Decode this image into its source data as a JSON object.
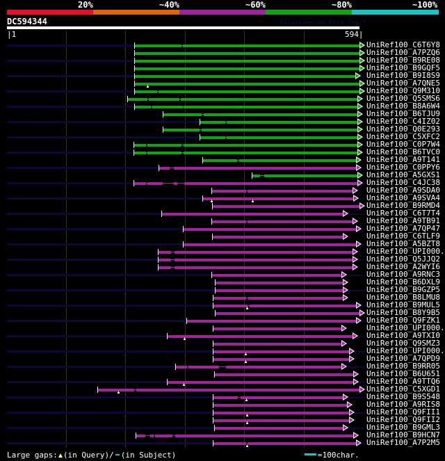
{
  "identity_scale": {
    "labels": [
      "20%",
      "~40%",
      "~60%",
      "~80%",
      "~100%"
    ],
    "colors": [
      "#e8102a",
      "#e0650a",
      "#a222a0",
      "#12a512",
      "#19c3c8"
    ]
  },
  "query": {
    "name": "DC594344",
    "length_start": "|1",
    "length_end": "594|",
    "length": 594
  },
  "version_text": "AlignView.pm Beta rel.7",
  "colors": {
    "green": "#12a512",
    "purple": "#a222a0",
    "subject_unaligned": "#0a0a3a",
    "query_gap_marker": "#ffff90",
    "scale_bar": "#19c3c8"
  },
  "hits": [
    {
      "id": "UniRef100_C6T6Y8",
      "color": "green",
      "start": 214,
      "end": 594,
      "ext": true,
      "gaps": [
        [
          294,
          296
        ]
      ],
      "qgaps": []
    },
    {
      "id": "UniRef100_A7PZQ6",
      "color": "green",
      "start": 214,
      "end": 594,
      "ext": false,
      "gaps": [],
      "qgaps": []
    },
    {
      "id": "UniRef100_B9RE08",
      "color": "green",
      "start": 214,
      "end": 594,
      "ext": true,
      "gaps": [],
      "qgaps": []
    },
    {
      "id": "UniRef100_B9GQF5",
      "color": "green",
      "start": 214,
      "end": 594,
      "ext": false,
      "gaps": [],
      "qgaps": []
    },
    {
      "id": "UniRef100_B9I8S9",
      "color": "green",
      "start": 214,
      "end": 587,
      "ext": true,
      "gaps": [],
      "qgaps": []
    },
    {
      "id": "UniRef100_A7QNE5",
      "color": "green",
      "start": 214,
      "end": 594,
      "ext": false,
      "gaps": [],
      "qgaps": [
        236
      ]
    },
    {
      "id": "UniRef100_Q9M310",
      "color": "green",
      "start": 214,
      "end": 594,
      "ext": true,
      "gaps": [
        [
          253,
          255
        ]
      ],
      "qgaps": []
    },
    {
      "id": "UniRef100_Q5SMS6",
      "color": "green",
      "start": 203,
      "end": 591,
      "ext": false,
      "gaps": [
        [
          237,
          239
        ],
        [
          291,
          293
        ]
      ],
      "qgaps": []
    },
    {
      "id": "UniRef100_B8A6W4",
      "color": "green",
      "start": 214,
      "end": 591,
      "ext": true,
      "gaps": [
        [
          243,
          245
        ],
        [
          296,
          298
        ]
      ],
      "qgaps": []
    },
    {
      "id": "UniRef100_B6TJU9",
      "color": "green",
      "start": 262,
      "end": 591,
      "ext": false,
      "gaps": [
        [
          328,
          331
        ]
      ],
      "qgaps": []
    },
    {
      "id": "UniRef100_C4IZ02",
      "color": "green",
      "start": 325,
      "end": 591,
      "ext": true,
      "gaps": [
        [
          368,
          370
        ]
      ],
      "qgaps": []
    },
    {
      "id": "UniRef100_Q0E293",
      "color": "green",
      "start": 262,
      "end": 591,
      "ext": false,
      "gaps": [
        [
          325,
          328
        ]
      ],
      "qgaps": []
    },
    {
      "id": "UniRef100_C5XFC2",
      "color": "green",
      "start": 325,
      "end": 591,
      "ext": true,
      "gaps": [
        [
          368,
          370
        ]
      ],
      "qgaps": []
    },
    {
      "id": "UniRef100_C0P7W4",
      "color": "green",
      "start": 213,
      "end": 591,
      "ext": false,
      "gaps": [
        [
          234,
          237
        ],
        [
          294,
          297
        ]
      ],
      "qgaps": []
    },
    {
      "id": "UniRef100_B6TVC0",
      "color": "green",
      "start": 213,
      "end": 591,
      "ext": true,
      "gaps": [
        [
          234,
          237
        ],
        [
          294,
          297
        ]
      ],
      "qgaps": []
    },
    {
      "id": "UniRef100_A9T141",
      "color": "green",
      "start": 329,
      "end": 588,
      "ext": false,
      "gaps": [
        [
          388,
          391
        ]
      ],
      "qgaps": []
    },
    {
      "id": "UniRef100_C0PPY6",
      "color": "purple",
      "start": 255,
      "end": 588,
      "ext": true,
      "gaps": [
        [
          274,
          281
        ]
      ],
      "qgaps": []
    },
    {
      "id": "UniRef100_A5GXS1",
      "color": "green",
      "start": 412,
      "end": 591,
      "ext": false,
      "gaps": [
        [
          427,
          433
        ]
      ],
      "qgaps": []
    },
    {
      "id": "UniRef100_C4JC38",
      "color": "purple",
      "start": 213,
      "end": 591,
      "ext": true,
      "gaps": [
        [
          234,
          237
        ],
        [
          262,
          281
        ],
        [
          287,
          299
        ]
      ],
      "qgaps": []
    },
    {
      "id": "UniRef100_A9SDA0",
      "color": "purple",
      "start": 344,
      "end": 582,
      "ext": false,
      "gaps": [
        [
          403,
          405
        ]
      ],
      "qgaps": []
    },
    {
      "id": "UniRef100_A9SVA4",
      "color": "purple",
      "start": 329,
      "end": 584,
      "ext": true,
      "gaps": [],
      "qgaps": [
        343,
        412
      ]
    },
    {
      "id": "UniRef100_B9RMD4",
      "color": "purple",
      "start": 346,
      "end": 594,
      "ext": false,
      "gaps": [],
      "qgaps": []
    },
    {
      "id": "UniRef100_C6T7T4",
      "color": "purple",
      "start": 260,
      "end": 566,
      "ext": true,
      "gaps": [],
      "qgaps": []
    },
    {
      "id": "UniRef100_A9TB91",
      "color": "purple",
      "start": 344,
      "end": 582,
      "ext": false,
      "gaps": [
        [
          403,
          405
        ]
      ],
      "qgaps": []
    },
    {
      "id": "UniRef100_A7QP47",
      "color": "purple",
      "start": 296,
      "end": 588,
      "ext": true,
      "gaps": [],
      "qgaps": []
    },
    {
      "id": "UniRef100_C6TLF9",
      "color": "purple",
      "start": 346,
      "end": 566,
      "ext": false,
      "gaps": [],
      "qgaps": []
    },
    {
      "id": "UniRef100_A5BZT8",
      "color": "purple",
      "start": 296,
      "end": 588,
      "ext": true,
      "gaps": [],
      "qgaps": []
    },
    {
      "id": "UniRef100_UPI000..",
      "color": "purple",
      "start": 254,
      "end": 582,
      "ext": false,
      "gaps": [
        [
          276,
          282
        ]
      ],
      "qgaps": []
    },
    {
      "id": "UniRef100_Q5JJQ2",
      "color": "purple",
      "start": 254,
      "end": 582,
      "ext": true,
      "gaps": [
        [
          276,
          282
        ]
      ],
      "qgaps": []
    },
    {
      "id": "UniRef100_A2WYI6",
      "color": "purple",
      "start": 254,
      "end": 582,
      "ext": false,
      "gaps": [
        [
          276,
          282
        ]
      ],
      "qgaps": []
    },
    {
      "id": "UniRef100_A9RNC3",
      "color": "purple",
      "start": 344,
      "end": 564,
      "ext": true,
      "gaps": [],
      "qgaps": []
    },
    {
      "id": "UniRef100_B6DXL9",
      "color": "purple",
      "start": 350,
      "end": 566,
      "ext": false,
      "gaps": [],
      "qgaps": []
    },
    {
      "id": "UniRef100_B9GZP5",
      "color": "purple",
      "start": 350,
      "end": 566,
      "ext": true,
      "gaps": [],
      "qgaps": []
    },
    {
      "id": "UniRef100_B8LMU8",
      "color": "purple",
      "start": 347,
      "end": 566,
      "ext": false,
      "gaps": [
        [
          403,
          407
        ]
      ],
      "qgaps": []
    },
    {
      "id": "UniRef100_B9MUL5",
      "color": "purple",
      "start": 347,
      "end": 588,
      "ext": true,
      "gaps": [
        [
          405,
          409
        ]
      ],
      "qgaps": [
        403
      ]
    },
    {
      "id": "UniRef100_B8Y9B5",
      "color": "purple",
      "start": 350,
      "end": 594,
      "ext": false,
      "gaps": [],
      "qgaps": []
    },
    {
      "id": "UniRef100_Q9FZK1",
      "color": "purple",
      "start": 302,
      "end": 588,
      "ext": true,
      "gaps": [],
      "qgaps": []
    },
    {
      "id": "UniRef100_UPI000..",
      "color": "purple",
      "start": 347,
      "end": 564,
      "ext": false,
      "gaps": [],
      "qgaps": []
    },
    {
      "id": "UniRef100_A9TXI0",
      "color": "purple",
      "start": 270,
      "end": 582,
      "ext": true,
      "gaps": [],
      "qgaps": [
        298
      ]
    },
    {
      "id": "UniRef100_Q9SMZ3",
      "color": "purple",
      "start": 347,
      "end": 564,
      "ext": false,
      "gaps": [],
      "qgaps": []
    },
    {
      "id": "UniRef100_UPI000..",
      "color": "purple",
      "start": 347,
      "end": 576,
      "ext": true,
      "gaps": [],
      "qgaps": [
        401
      ]
    },
    {
      "id": "UniRef100_A7QPD9",
      "color": "purple",
      "start": 347,
      "end": 576,
      "ext": false,
      "gaps": [],
      "qgaps": [
        401
      ]
    },
    {
      "id": "UniRef100_B9RR05",
      "color": "purple",
      "start": 284,
      "end": 564,
      "ext": true,
      "gaps": [
        [
          303,
          306
        ],
        [
          357,
          369
        ]
      ],
      "qgaps": []
    },
    {
      "id": "UniRef100_B6U651",
      "color": "purple",
      "start": 349,
      "end": 584,
      "ext": false,
      "gaps": [],
      "qgaps": []
    },
    {
      "id": "UniRef100_A9TTQ6",
      "color": "purple",
      "start": 269,
      "end": 584,
      "ext": true,
      "gaps": [],
      "qgaps": [
        296
      ]
    },
    {
      "id": "UniRef100_C5XGD1",
      "color": "purple",
      "start": 152,
      "end": 594,
      "ext": false,
      "gaps": [
        [
          214,
          218
        ]
      ],
      "qgaps": [
        186
      ]
    },
    {
      "id": "UniRef100_B9S548",
      "color": "purple",
      "start": 347,
      "end": 566,
      "ext": true,
      "gaps": [
        [
          389,
          394
        ]
      ],
      "qgaps": [
        402
      ]
    },
    {
      "id": "UniRef100_A9RIS8",
      "color": "purple",
      "start": 347,
      "end": 573,
      "ext": false,
      "gaps": [],
      "qgaps": []
    },
    {
      "id": "UniRef100_Q9FII1",
      "color": "purple",
      "start": 347,
      "end": 576,
      "ext": true,
      "gaps": [],
      "qgaps": [
        403
      ]
    },
    {
      "id": "UniRef100_Q9FII2",
      "color": "purple",
      "start": 347,
      "end": 576,
      "ext": false,
      "gaps": [],
      "qgaps": [
        403
      ]
    },
    {
      "id": "UniRef100_B9GML3",
      "color": "purple",
      "start": 349,
      "end": 566,
      "ext": true,
      "gaps": [],
      "qgaps": []
    },
    {
      "id": "UniRef100_B9HCN7",
      "color": "purple",
      "start": 217,
      "end": 584,
      "ext": false,
      "gaps": [
        [
          233,
          241
        ],
        [
          247,
          250
        ],
        [
          279,
          283
        ]
      ],
      "qgaps": []
    },
    {
      "id": "UniRef100_A7P2M5",
      "color": "purple",
      "start": 347,
      "end": 588,
      "ext": true,
      "gaps": [
        [
          403,
          407
        ]
      ],
      "qgaps": [
        403
      ]
    }
  ],
  "legend": {
    "large_gaps_label": "Large gaps:",
    "in_query": "(in Query)/",
    "in_subject": "(in Subject)",
    "scale_label": "=100char."
  }
}
